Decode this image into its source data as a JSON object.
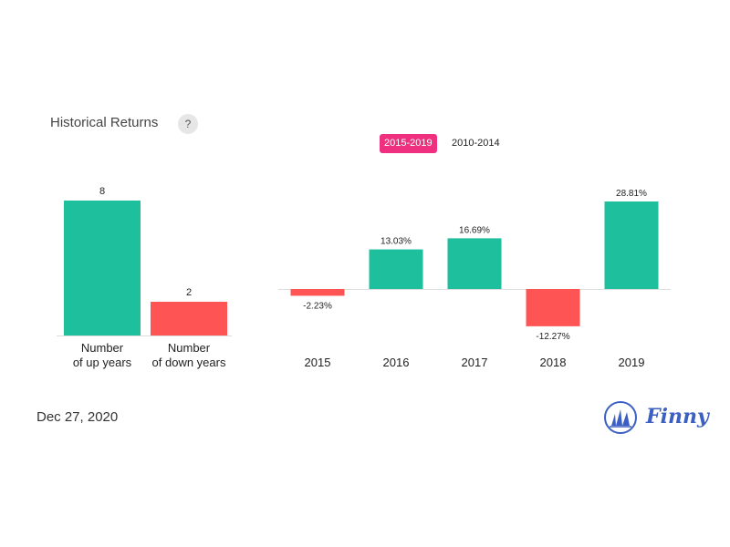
{
  "header": {
    "title": "Historical Returns",
    "help_label": "?"
  },
  "range_tabs": [
    {
      "label": "2015-2019",
      "active": true
    },
    {
      "label": "2010-2014",
      "active": false
    }
  ],
  "footer": {
    "date": "Dec 27, 2020",
    "brand": "Finny"
  },
  "colors": {
    "up": "#1dbf9c",
    "down": "#fe5454",
    "active_tab": "#ef2f7f",
    "brand": "#3c5fc3"
  },
  "chart_data": [
    {
      "type": "bar",
      "categories": [
        [
          "Number",
          "of up years"
        ],
        [
          "Number",
          "of down years"
        ]
      ],
      "values": [
        8,
        2
      ],
      "value_labels": [
        "8",
        "2"
      ],
      "colors": [
        "#1dbf9c",
        "#fe5454"
      ],
      "ylim": [
        0,
        8
      ]
    },
    {
      "type": "bar",
      "categories": [
        "2015",
        "2016",
        "2017",
        "2018",
        "2019"
      ],
      "values": [
        -2.23,
        13.03,
        16.69,
        -12.27,
        28.81
      ],
      "value_labels": [
        "-2.23%",
        "13.03%",
        "16.69%",
        "-12.27%",
        "28.81%"
      ],
      "ylim": [
        -13,
        29
      ]
    }
  ]
}
